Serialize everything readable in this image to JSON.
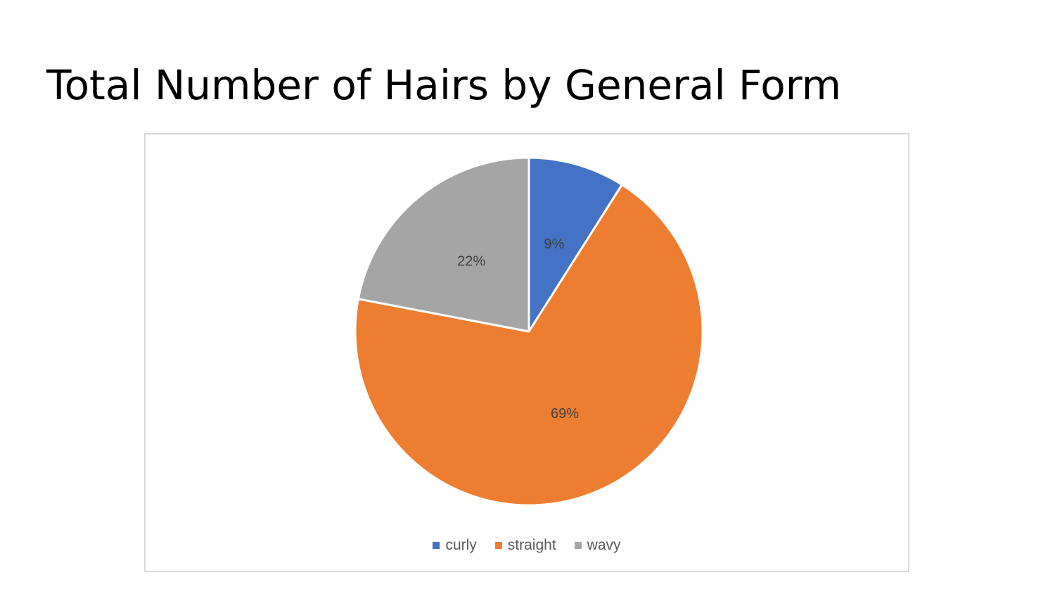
{
  "title": "Total Number of Hairs by General Form",
  "chart_data": {
    "type": "pie",
    "categories": [
      "curly",
      "straight",
      "wavy"
    ],
    "values": [
      9,
      69,
      22
    ],
    "labels": [
      "9%",
      "69%",
      "22%"
    ],
    "colors": [
      "#4472c4",
      "#ed7d31",
      "#a5a5a5"
    ],
    "legend_position": "bottom"
  }
}
